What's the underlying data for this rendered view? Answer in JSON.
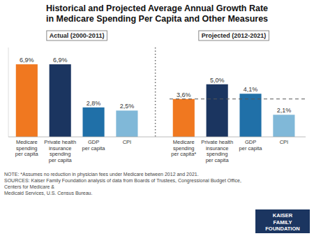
{
  "chart_data": {
    "type": "bar",
    "title": "Historical and Projected Average Annual Growth Rate\nin Medicare Spending Per Capita and Other Measures",
    "group_labels": [
      "Actual (2000-2011)",
      "Projected (2012-2021)"
    ],
    "categories": [
      "Medicare\nspending\nper capita",
      "Private health\ninsurance\nspending\nper capita",
      "GDP\nper capita",
      "CPI",
      "Medicare\nspending\nper capita*",
      "Private health\ninsurance\nspending\nper capita",
      "GDP\nper capita",
      "CPI"
    ],
    "values": [
      6.9,
      6.9,
      2.8,
      2.5,
      3.6,
      5.0,
      4.1,
      2.1
    ],
    "value_labels": [
      "6,9%",
      "6,9%",
      "2,8%",
      "2,5%",
      "3,6%",
      "5,0%",
      "4,1%",
      "2,1%"
    ],
    "colors": [
      "#F07820",
      "#1B3560",
      "#2070A8",
      "#80B8D8",
      "#F07820",
      "#1B3560",
      "#2070A8",
      "#80B8D8"
    ],
    "reference_line": 3.6,
    "ylim": [
      0,
      8.5
    ],
    "data_labels": true,
    "tick_labels": "x",
    "grid": false,
    "note": "NOTE: *Assumes no reduction in physician fees under Medicare between 2012 and 2021.\nSOURCES:  Kaiser Family Foundation analysis of data from Boards of Trustees, Congressional Budget Office, Centers for Medicare &\nMedicaid Services, U.S. Census Bureau.",
    "logo": {
      "text": "KAISER\nFAMILY\nFOUNDATION",
      "color": "#1B3560"
    }
  }
}
